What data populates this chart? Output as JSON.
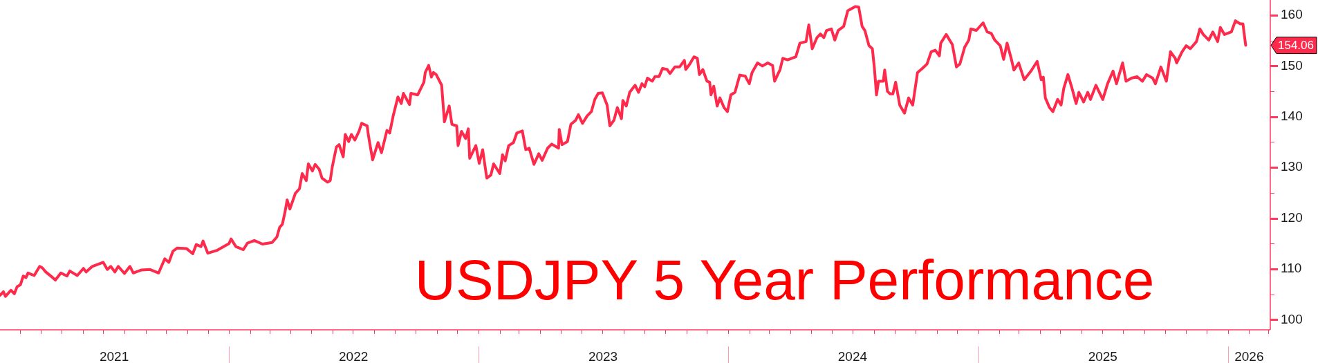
{
  "chart_data": {
    "type": "line",
    "title": "USDJPY 5 Year Performance",
    "color": "#fd2a4c",
    "marker": "none",
    "line_style": "solid",
    "x": [
      "2021-01-31",
      "2021-02-05",
      "2021-02-08",
      "2021-02-16",
      "2021-02-21",
      "2021-02-25",
      "2021-03-02",
      "2021-03-06",
      "2021-03-10",
      "2021-03-13",
      "2021-03-22",
      "2021-03-30",
      "2021-04-03",
      "2021-04-08",
      "2021-04-18",
      "2021-04-22",
      "2021-04-30",
      "2021-05-09",
      "2021-05-13",
      "2021-05-24",
      "2021-06-02",
      "2021-06-06",
      "2021-06-15",
      "2021-06-23",
      "2021-07-01",
      "2021-07-07",
      "2021-07-12",
      "2021-07-18",
      "2021-07-23",
      "2021-08-01",
      "2021-08-09",
      "2021-08-14",
      "2021-08-26",
      "2021-09-07",
      "2021-09-20",
      "2021-09-29",
      "2021-10-05",
      "2021-10-11",
      "2021-10-17",
      "2021-10-31",
      "2021-11-09",
      "2021-11-14",
      "2021-11-21",
      "2021-11-24",
      "2021-12-01",
      "2021-12-15",
      "2022-01-01",
      "2022-01-04",
      "2022-01-11",
      "2022-01-22",
      "2022-01-28",
      "2022-02-07",
      "2022-02-19",
      "2022-03-05",
      "2022-03-12",
      "2022-03-16",
      "2022-03-20",
      "2022-03-24",
      "2022-03-27",
      "2022-03-31",
      "2022-04-08",
      "2022-04-14",
      "2022-04-18",
      "2022-04-24",
      "2022-04-27",
      "2022-05-03",
      "2022-05-07",
      "2022-05-13",
      "2022-05-17",
      "2022-05-25",
      "2022-05-29",
      "2022-06-01",
      "2022-06-07",
      "2022-06-11",
      "2022-06-17",
      "2022-06-20",
      "2022-06-25",
      "2022-06-29",
      "2022-07-04",
      "2022-07-10",
      "2022-07-14",
      "2022-07-22",
      "2022-07-24",
      "2022-07-30",
      "2022-08-07",
      "2022-08-12",
      "2022-08-20",
      "2022-08-24",
      "2022-08-29",
      "2022-09-05",
      "2022-09-10",
      "2022-09-13",
      "2022-09-22",
      "2022-09-24",
      "2022-10-04",
      "2022-10-13",
      "2022-10-15",
      "2022-10-20",
      "2022-10-24",
      "2022-10-27",
      "2022-10-31",
      "2022-11-08",
      "2022-11-12",
      "2022-11-19",
      "2022-11-23",
      "2022-11-30",
      "2022-12-02",
      "2022-12-07",
      "2022-12-13",
      "2022-12-17",
      "2022-12-19",
      "2022-12-28",
      "2023-01-02",
      "2023-01-07",
      "2023-01-13",
      "2023-01-19",
      "2023-01-23",
      "2023-02-01",
      "2023-02-05",
      "2023-02-09",
      "2023-02-14",
      "2023-02-21",
      "2023-02-26",
      "2023-03-06",
      "2023-03-11",
      "2023-03-16",
      "2023-03-23",
      "2023-03-30",
      "2023-04-04",
      "2023-04-12",
      "2023-04-18",
      "2023-04-28",
      "2023-04-29",
      "2023-05-03",
      "2023-05-11",
      "2023-05-16",
      "2023-05-23",
      "2023-05-27",
      "2023-06-02",
      "2023-06-09",
      "2023-06-15",
      "2023-06-20",
      "2023-06-25",
      "2023-07-01",
      "2023-07-08",
      "2023-07-12",
      "2023-07-18",
      "2023-07-23",
      "2023-07-29",
      "2023-07-31",
      "2023-08-05",
      "2023-08-10",
      "2023-08-18",
      "2023-08-23",
      "2023-08-28",
      "2023-09-01",
      "2023-09-05",
      "2023-09-12",
      "2023-09-16",
      "2023-09-22",
      "2023-09-27",
      "2023-10-04",
      "2023-10-08",
      "2023-10-15",
      "2023-10-22",
      "2023-10-29",
      "2023-10-31",
      "2023-11-06",
      "2023-11-12",
      "2023-11-17",
      "2023-11-20",
      "2023-11-25",
      "2023-12-01",
      "2023-12-05",
      "2023-12-07",
      "2023-12-11",
      "2023-12-16",
      "2023-12-20",
      "2023-12-26",
      "2023-12-31",
      "2024-01-05",
      "2024-01-11",
      "2024-01-18",
      "2024-01-26",
      "2024-02-01",
      "2024-02-05",
      "2024-02-13",
      "2024-02-20",
      "2024-02-28",
      "2024-03-06",
      "2024-03-09",
      "2024-03-17",
      "2024-03-21",
      "2024-03-28",
      "2024-04-09",
      "2024-04-15",
      "2024-04-24",
      "2024-04-28",
      "2024-05-03",
      "2024-05-10",
      "2024-05-15",
      "2024-05-20",
      "2024-05-24",
      "2024-05-31",
      "2024-06-05",
      "2024-06-10",
      "2024-06-18",
      "2024-06-24",
      "2024-07-05",
      "2024-07-10",
      "2024-07-15",
      "2024-07-19",
      "2024-07-25",
      "2024-07-30",
      "2024-08-02",
      "2024-08-05",
      "2024-08-08",
      "2024-08-15",
      "2024-08-17",
      "2024-08-21",
      "2024-08-25",
      "2024-08-29",
      "2024-09-02",
      "2024-09-08",
      "2024-09-15",
      "2024-09-21",
      "2024-09-27",
      "2024-10-04",
      "2024-10-11",
      "2024-10-18",
      "2024-10-24",
      "2024-10-30",
      "2024-11-05",
      "2024-11-07",
      "2024-11-15",
      "2024-11-24",
      "2024-11-30",
      "2024-12-05",
      "2024-12-12",
      "2024-12-18",
      "2024-12-21",
      "2024-12-29",
      "2025-01-08",
      "2025-01-14",
      "2025-01-20",
      "2025-01-25",
      "2025-02-02",
      "2025-02-07",
      "2025-02-12",
      "2025-02-18",
      "2025-02-22",
      "2025-03-01",
      "2025-03-09",
      "2025-03-19",
      "2025-03-28",
      "2025-04-03",
      "2025-04-06",
      "2025-04-09",
      "2025-04-15",
      "2025-04-20",
      "2025-04-27",
      "2025-05-02",
      "2025-05-06",
      "2025-05-12",
      "2025-05-18",
      "2025-05-24",
      "2025-05-28",
      "2025-06-04",
      "2025-06-10",
      "2025-06-14",
      "2025-06-22",
      "2025-07-02",
      "2025-07-09",
      "2025-07-17",
      "2025-07-22",
      "2025-07-31",
      "2025-08-05",
      "2025-08-13",
      "2025-08-21",
      "2025-08-29",
      "2025-09-04",
      "2025-09-13",
      "2025-09-17",
      "2025-09-25",
      "2025-10-03",
      "2025-10-09",
      "2025-10-16",
      "2025-10-18",
      "2025-10-26",
      "2025-11-01",
      "2025-11-07",
      "2025-11-16",
      "2025-11-21",
      "2025-11-26",
      "2025-12-04",
      "2025-12-10",
      "2025-12-17",
      "2025-12-21",
      "2025-12-27",
      "2026-01-06",
      "2026-01-12",
      "2026-01-19",
      "2026-01-23",
      "2026-01-27"
    ],
    "values": [
      104.8,
      105.5,
      104.6,
      105.8,
      105.1,
      106.5,
      106.9,
      108.6,
      108.3,
      109.2,
      108.7,
      110.5,
      110.2,
      109.4,
      108.3,
      107.8,
      109.2,
      108.6,
      109.6,
      108.7,
      110.1,
      109.4,
      110.5,
      110.9,
      111.3,
      109.9,
      110.5,
      109.4,
      110.5,
      109.1,
      110.5,
      109.2,
      109.8,
      109.9,
      109.2,
      112.0,
      111.3,
      113.5,
      114.1,
      114.0,
      113.0,
      114.8,
      114.4,
      115.5,
      113.1,
      113.7,
      115.0,
      115.9,
      114.4,
      113.8,
      115.1,
      115.6,
      114.9,
      115.2,
      116.3,
      118.2,
      118.8,
      121.3,
      123.6,
      121.8,
      124.9,
      125.8,
      128.8,
      127.4,
      130.7,
      129.3,
      130.6,
      129.6,
      127.9,
      127.1,
      127.4,
      130.1,
      134.0,
      134.5,
      132.1,
      136.5,
      135.1,
      136.5,
      135.4,
      137.1,
      138.7,
      138.2,
      136.2,
      131.5,
      134.9,
      132.9,
      137.3,
      136.8,
      140.1,
      143.9,
      142.6,
      144.6,
      142.4,
      144.6,
      144.3,
      146.8,
      148.7,
      150.1,
      147.8,
      148.7,
      148.3,
      146.2,
      139.0,
      142.1,
      138.5,
      138.2,
      134.3,
      137.1,
      135.7,
      137.6,
      131.8,
      134.3,
      130.8,
      133.5,
      127.9,
      128.5,
      130.7,
      128.8,
      132.5,
      131.3,
      134.3,
      134.9,
      136.8,
      137.2,
      133.5,
      133.8,
      130.6,
      132.7,
      131.4,
      133.8,
      134.6,
      133.8,
      137.5,
      134.5,
      135.1,
      138.5,
      139.3,
      140.4,
      138.7,
      140.2,
      141.0,
      143.4,
      144.6,
      144.7,
      142.3,
      138.2,
      139.3,
      141.8,
      139.6,
      143.2,
      142.1,
      144.8,
      146.2,
      144.8,
      146.5,
      145.9,
      147.6,
      147.0,
      147.9,
      147.9,
      149.5,
      149.3,
      148.5,
      149.8,
      149.8,
      151.1,
      149.3,
      150.4,
      151.8,
      151.5,
      148.3,
      149.3,
      147.0,
      146.8,
      144.3,
      146.0,
      142.1,
      143.7,
      141.8,
      141.0,
      144.3,
      144.8,
      148.2,
      148.0,
      146.5,
      148.7,
      150.6,
      150.0,
      150.6,
      150.1,
      147.0,
      149.3,
      151.5,
      151.2,
      151.8,
      154.5,
      154.8,
      158.1,
      153.4,
      155.6,
      156.3,
      155.6,
      157.0,
      157.3,
      155.1,
      157.0,
      157.8,
      160.9,
      161.7,
      161.6,
      157.8,
      157.0,
      154.0,
      153.4,
      149.5,
      144.3,
      147.0,
      147.0,
      149.2,
      145.0,
      144.5,
      144.5,
      146.8,
      142.3,
      140.7,
      143.7,
      142.3,
      148.7,
      149.5,
      150.4,
      152.8,
      153.1,
      152.0,
      154.5,
      156.2,
      154.2,
      149.8,
      150.4,
      153.7,
      155.1,
      157.3,
      157.0,
      158.5,
      156.7,
      156.4,
      155.1,
      154.0,
      151.3,
      154.5,
      151.5,
      149.2,
      150.6,
      147.3,
      149.0,
      150.9,
      147.3,
      147.8,
      143.7,
      141.8,
      141.0,
      143.4,
      142.3,
      145.6,
      148.3,
      145.6,
      142.6,
      144.8,
      142.9,
      144.8,
      143.4,
      146.2,
      143.4,
      146.5,
      149.0,
      146.5,
      150.6,
      147.0,
      147.6,
      147.9,
      147.0,
      148.3,
      147.6,
      146.5,
      149.8,
      147.0,
      152.8,
      151.5,
      150.6,
      152.8,
      154.0,
      153.4,
      154.8,
      157.3,
      156.2,
      155.1,
      156.7,
      154.8,
      157.6,
      156.2,
      156.7,
      158.9,
      158.3,
      158.3,
      154.06
    ],
    "xlim": [
      "2021-01-31",
      "2026-03-04"
    ],
    "xticks": [
      {
        "value": "2021-03",
        "label": null
      },
      {
        "value": "2021-04",
        "label": null
      },
      {
        "value": "2021-05",
        "label": null
      },
      {
        "value": "2021-06",
        "label": null
      },
      {
        "value": "2021-07",
        "label": null
      },
      {
        "value": "2021-07-17",
        "label": "2021"
      },
      {
        "value": "2021-08",
        "label": null
      },
      {
        "value": "2021-09",
        "label": null
      },
      {
        "value": "2021-10",
        "label": null
      },
      {
        "value": "2021-11",
        "label": null
      },
      {
        "value": "2021-12",
        "label": null
      },
      {
        "value": "2022-01",
        "label": null
      },
      {
        "value": "2022-02",
        "label": null
      },
      {
        "value": "2022-03",
        "label": null
      },
      {
        "value": "2022-04",
        "label": null
      },
      {
        "value": "2022-05",
        "label": null
      },
      {
        "value": "2022-06",
        "label": null
      },
      {
        "value": "2022-07",
        "label": null
      },
      {
        "value": "2022-07-02",
        "label": "2022"
      },
      {
        "value": "2022-08",
        "label": null
      },
      {
        "value": "2022-09",
        "label": null
      },
      {
        "value": "2022-10",
        "label": null
      },
      {
        "value": "2022-11",
        "label": null
      },
      {
        "value": "2022-12",
        "label": null
      },
      {
        "value": "2023-01",
        "label": null
      },
      {
        "value": "2023-02",
        "label": null
      },
      {
        "value": "2023-03",
        "label": null
      },
      {
        "value": "2023-04",
        "label": null
      },
      {
        "value": "2023-05",
        "label": null
      },
      {
        "value": "2023-06",
        "label": null
      },
      {
        "value": "2023-07",
        "label": null
      },
      {
        "value": "2023-07-02",
        "label": "2023"
      },
      {
        "value": "2023-08",
        "label": null
      },
      {
        "value": "2023-09",
        "label": null
      },
      {
        "value": "2023-10",
        "label": null
      },
      {
        "value": "2023-11",
        "label": null
      },
      {
        "value": "2023-12",
        "label": null
      },
      {
        "value": "2024-01",
        "label": null
      },
      {
        "value": "2024-02",
        "label": null
      },
      {
        "value": "2024-03",
        "label": null
      },
      {
        "value": "2024-04",
        "label": null
      },
      {
        "value": "2024-05",
        "label": null
      },
      {
        "value": "2024-06",
        "label": null
      },
      {
        "value": "2024-07",
        "label": null
      },
      {
        "value": "2024-07-01",
        "label": "2024"
      },
      {
        "value": "2024-08",
        "label": null
      },
      {
        "value": "2024-09",
        "label": null
      },
      {
        "value": "2024-10",
        "label": null
      },
      {
        "value": "2024-11",
        "label": null
      },
      {
        "value": "2024-12",
        "label": null
      },
      {
        "value": "2025-01",
        "label": null
      },
      {
        "value": "2025-02",
        "label": null
      },
      {
        "value": "2025-03",
        "label": null
      },
      {
        "value": "2025-04",
        "label": null
      },
      {
        "value": "2025-05",
        "label": null
      },
      {
        "value": "2025-06",
        "label": null
      },
      {
        "value": "2025-07",
        "label": null
      },
      {
        "value": "2025-07-02",
        "label": "2025"
      },
      {
        "value": "2025-08",
        "label": null
      },
      {
        "value": "2025-09",
        "label": null
      },
      {
        "value": "2025-10",
        "label": null
      },
      {
        "value": "2025-11",
        "label": null
      },
      {
        "value": "2025-12",
        "label": null
      },
      {
        "value": "2026-01",
        "label": null
      },
      {
        "value": "2026-02",
        "label": null
      },
      {
        "value": "2026-02-01",
        "label": "2026"
      },
      {
        "value": "2026-03",
        "label": null
      }
    ],
    "ylim": [
      98,
      163
    ],
    "yticks": [
      100,
      {
        "value": 105,
        "label": null
      },
      110,
      {
        "value": 115,
        "label": null
      },
      120,
      {
        "value": 125,
        "label": null
      },
      130,
      {
        "value": 135,
        "label": null
      },
      140,
      {
        "value": 145,
        "label": null
      },
      150,
      {
        "value": 155,
        "label": null
      },
      160
    ],
    "annotations": [
      {
        "text": "154.06",
        "x": "2026-01-27",
        "y": 154.06
      }
    ]
  }
}
